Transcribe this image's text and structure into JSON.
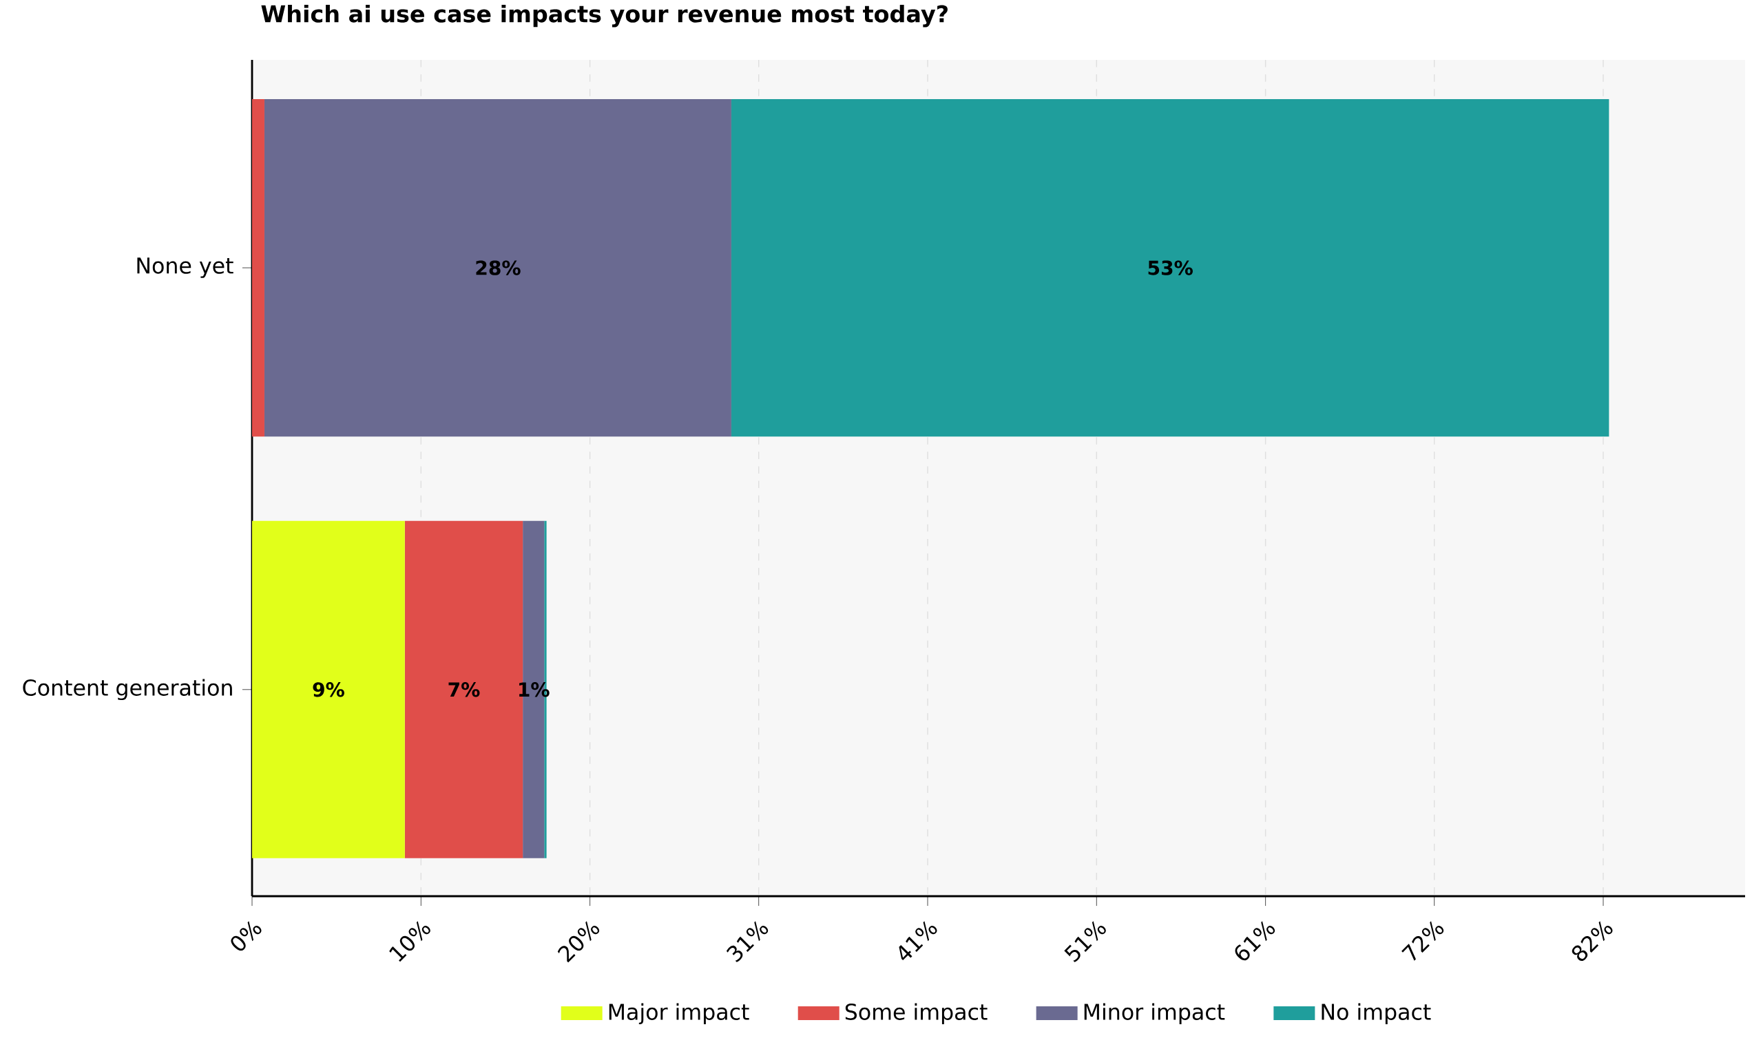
{
  "chart_data": {
    "type": "bar",
    "orientation": "horizontal",
    "stacked": true,
    "title": "Which ai use case impacts your revenue most today?",
    "categories": [
      "None yet",
      "Content generation"
    ],
    "series": [
      {
        "name": "Major impact",
        "color": "#e1ff1a",
        "values": [
          0,
          9.26
        ],
        "value_labels": [
          null,
          "9%"
        ]
      },
      {
        "name": "Some impact",
        "color": "#e04e4a",
        "values": [
          0.75,
          7.15
        ],
        "value_labels": [
          null,
          "7%"
        ]
      },
      {
        "name": "Minor impact",
        "color": "#6a6a91",
        "values": [
          28.3,
          1.3
        ],
        "value_labels": [
          "28%",
          "1%"
        ]
      },
      {
        "name": "No impact",
        "color": "#1f9e9c",
        "values": [
          53.2,
          0.14
        ],
        "value_labels": [
          "53%",
          null
        ]
      }
    ],
    "xlim": [
      0,
      90.5
    ],
    "xticks": [
      {
        "value": 0,
        "label": "0%"
      },
      {
        "value": 10.24,
        "label": "10%"
      },
      {
        "value": 20.48,
        "label": "20%"
      },
      {
        "value": 30.71,
        "label": "31%"
      },
      {
        "value": 40.95,
        "label": "41%"
      },
      {
        "value": 51.19,
        "label": "51%"
      },
      {
        "value": 61.43,
        "label": "61%"
      },
      {
        "value": 71.66,
        "label": "72%"
      },
      {
        "value": 81.9,
        "label": "82%"
      }
    ],
    "grid": "x",
    "legend": "bottom"
  }
}
